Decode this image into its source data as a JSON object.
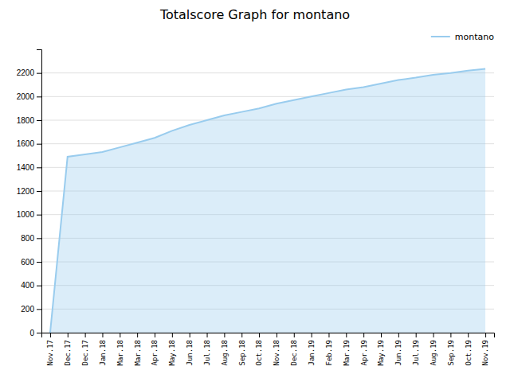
{
  "chart_data": {
    "type": "area",
    "title": "Totalscore Graph for montano",
    "categories": [
      "Nov.17",
      "Dec.17",
      "Dec.17",
      "Jan.18",
      "Mar.18",
      "Mar.18",
      "Apr.18",
      "May.18",
      "Jun.18",
      "Jul.18",
      "Aug.18",
      "Sep.18",
      "Oct.18",
      "Nov.18",
      "Dec.18",
      "Jan.19",
      "Feb.19",
      "Mar.19",
      "Apr.19",
      "May.19",
      "Jun.19",
      "Jul.19",
      "Aug.19",
      "Sep.19",
      "Oct.19",
      "Nov.19"
    ],
    "series": [
      {
        "name": "montano",
        "color": "#99ccee",
        "values": [
          0,
          1490,
          1510,
          1530,
          1570,
          1610,
          1650,
          1710,
          1760,
          1800,
          1840,
          1870,
          1900,
          1940,
          1970,
          2000,
          2030,
          2060,
          2080,
          2110,
          2140,
          2160,
          2185,
          2200,
          2220,
          2235
        ]
      }
    ],
    "ylim": [
      0,
      2400
    ],
    "yticks": [
      0,
      200,
      400,
      600,
      800,
      1000,
      1200,
      1400,
      1600,
      1800,
      2000,
      2200
    ],
    "grid": true,
    "legend": "upper right"
  }
}
